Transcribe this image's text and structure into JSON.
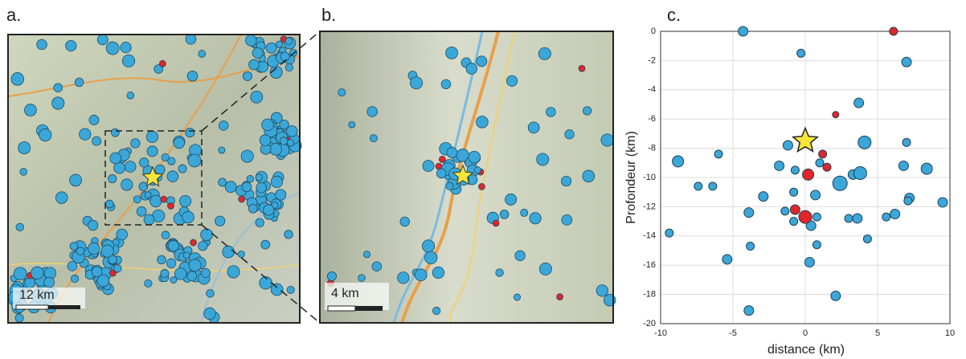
{
  "maps": [
    {
      "label": "a.",
      "scale_label": "12 km"
    },
    {
      "label": "b.",
      "scale_label": "4 km"
    }
  ],
  "chart_data": {
    "type": "scatter",
    "panel_label": "c.",
    "x_label": "distance (km)",
    "y_label": "Profondeur (km)",
    "xlim": [
      -10,
      10
    ],
    "ylim": [
      -20,
      0
    ],
    "xticks": [
      -10,
      -5,
      0,
      5,
      10
    ],
    "yticks": [
      0,
      -2,
      -4,
      -6,
      -8,
      -10,
      -12,
      -14,
      -16,
      -18,
      -20
    ],
    "grid": true,
    "series": [
      {
        "color": "#3aa7d8",
        "marker": "circle",
        "x": [
          -4.3,
          -0.3,
          7,
          3.7,
          4.1,
          7,
          -1.2,
          -6,
          -8.8,
          1.0,
          -1.8,
          -0.7,
          3.3,
          3.8,
          2.4,
          6.8,
          8.4,
          -7.4,
          -6.4,
          -2.9,
          -0.8,
          0.7,
          7.2,
          7.1,
          9.5,
          -3.9,
          -1.4,
          0.8,
          3,
          3.6,
          5.6,
          6.2,
          -9.4,
          -0.8,
          0.4,
          4.3,
          -3.8,
          0.8,
          -5.4,
          0.3,
          2.1,
          -3.9
        ],
        "values": [
          0,
          -1.5,
          -2.1,
          -4.9,
          -7.6,
          -7.6,
          -7.8,
          -8.4,
          -8.9,
          -9.0,
          -9.2,
          -9.5,
          -9.8,
          -9.7,
          -10.4,
          -9.2,
          -9.4,
          -10.6,
          -10.6,
          -11.3,
          -11,
          -11.2,
          -11.4,
          -11.6,
          -11.7,
          -12.4,
          -12.3,
          -12.7,
          -12.8,
          -12.8,
          -12.7,
          -12.5,
          -13.8,
          -13,
          -13.3,
          -14.2,
          -14.7,
          -14.6,
          -15.6,
          -15.8,
          -18.1,
          -19.1
        ],
        "sizes": [
          6,
          5,
          6,
          6,
          8,
          5,
          6,
          5,
          7,
          5,
          6,
          5,
          6,
          8,
          9,
          6,
          7,
          5,
          5,
          6,
          5,
          6,
          6,
          5,
          6,
          6,
          5,
          5,
          5,
          6,
          5,
          6,
          5,
          5,
          6,
          5,
          5,
          5,
          6,
          6,
          6,
          6
        ]
      },
      {
        "color": "#e0262a",
        "marker": "circle",
        "x": [
          6.1,
          2.1,
          1.2,
          1.5,
          0.2,
          -0.7,
          0
        ],
        "values": [
          0,
          -5.7,
          -8.4,
          -9.3,
          -9.8,
          -12.2,
          -12.7
        ],
        "sizes": [
          5,
          4,
          5,
          5,
          7,
          6,
          8
        ]
      },
      {
        "color": "#f6e63a",
        "marker": "star",
        "x": [
          0
        ],
        "values": [
          -7.5
        ],
        "sizes": [
          16
        ]
      }
    ]
  }
}
